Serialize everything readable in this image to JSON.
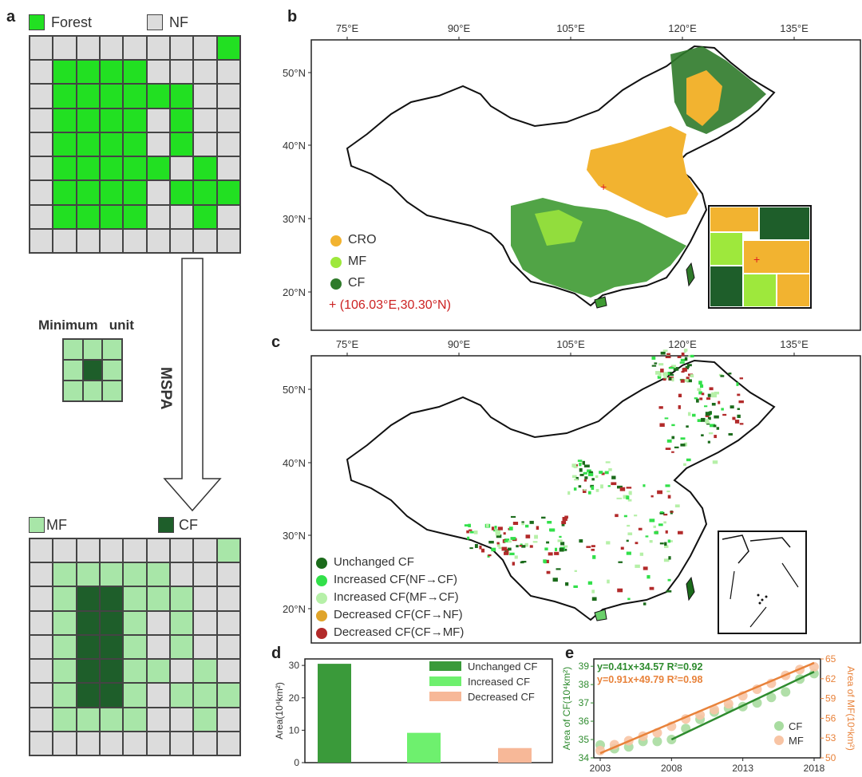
{
  "panels": {
    "a": "a",
    "b": "b",
    "c": "c",
    "d": "d",
    "e": "e"
  },
  "panel_a": {
    "legend_top": {
      "forest": "Forest",
      "nf": "NF"
    },
    "minimum_unit_label": "Minimum   unit",
    "arrow_label": "MSPA",
    "legend_bottom": {
      "mf": "MF",
      "cf": "CF"
    },
    "top_grid_rows": [
      "NNNNNNNNF",
      "NFFFFNNNN",
      "NFFFFFFNN",
      "NFFFFNFNN",
      "NFFFFNFNN",
      "NFFFFFNFN",
      "NFFFFNFFF",
      "NFFFFNNFN",
      "NNNNNNNNN"
    ],
    "bottom_grid_rows": [
      "NNNNNNNNM",
      "NMMMMMNNN",
      "NMCCMMMNN",
      "NMCCMNMNN",
      "NMCCMNMNN",
      "NMCCMMNMN",
      "NMCCMNMMM",
      "NMMMMNNMN",
      "NNNNNNNNN"
    ]
  },
  "map_axes": {
    "lon_ticks": [
      "75°E",
      "90°E",
      "105°E",
      "120°E",
      "135°E"
    ],
    "lat_ticks": [
      "50°N",
      "40°N",
      "30°N",
      "20°N"
    ]
  },
  "panel_b": {
    "legend": [
      {
        "label": "CRO",
        "color": "#f2b330"
      },
      {
        "label": "MF",
        "color": "#9ee83c"
      },
      {
        "label": "CF",
        "color": "#2f7a2a"
      }
    ],
    "point_label": "+ (106.03°E,30.30°N)"
  },
  "panel_c": {
    "legend": [
      {
        "label": "Unchanged CF",
        "color": "#1b6b1b"
      },
      {
        "label": "Increased CF(NF→CF)",
        "color": "#32e04a"
      },
      {
        "label": "Increased CF(MF→CF)",
        "color": "#b6f0a8"
      },
      {
        "label": "Decreased CF(CF→NF)",
        "color": "#e0a42a"
      },
      {
        "label": "Decreased CF(CF→MF)",
        "color": "#b22a2a"
      }
    ]
  },
  "colors": {
    "cro": "#f2b330",
    "mf": "#9ee83c",
    "cf": "#2f7a2a",
    "forest": "#22e022",
    "nf": "#dcdcdc",
    "lightmf": "#a8e6a8",
    "darkcf": "#1e5e2a",
    "trend_cf": "#2e8b2e",
    "trend_mf": "#e8823a"
  },
  "chart_data": [
    {
      "type": "bar",
      "categories": [
        "Unchanged CF",
        "Increased CF",
        "Decreased CF"
      ],
      "values": [
        30.5,
        9.2,
        4.5
      ],
      "colors": [
        "#3a9a3a",
        "#6ef06e",
        "#f7b898"
      ],
      "ylabel": "Area(10⁴km²)",
      "ylim": [
        0,
        32
      ],
      "yticks": [
        "0",
        "10",
        "20",
        "30"
      ],
      "legend": [
        "Unchanged CF",
        "Increased CF",
        "Decreased CF"
      ]
    },
    {
      "type": "scatter",
      "x_ticks": [
        "2003",
        "2008",
        "2013",
        "2018"
      ],
      "xlim": [
        2003,
        2018
      ],
      "left_axis": {
        "label": "Area of CF(10⁴km²)",
        "ticks": [
          "34",
          "35",
          "36",
          "37",
          "38",
          "39"
        ],
        "ylim": [
          34,
          39.4
        ]
      },
      "right_axis": {
        "label": "Area of MF(10⁴km²)",
        "ticks": [
          "50",
          "53",
          "56",
          "59",
          "62",
          "65"
        ],
        "ylim": [
          50,
          65
        ]
      },
      "equations": {
        "cf": "y=0.41x+34.57 R²=0.92",
        "mf": "y=0.91x+49.79 R²=0.98"
      },
      "legend": [
        "CF",
        "MF"
      ],
      "series": [
        {
          "name": "CF",
          "axis": "left",
          "x": [
            2003,
            2004,
            2005,
            2006,
            2007,
            2008,
            2009,
            2010,
            2011,
            2012,
            2013,
            2014,
            2015,
            2016,
            2017,
            2018
          ],
          "y": [
            34.7,
            34.5,
            34.6,
            34.9,
            34.9,
            35.0,
            35.6,
            36.1,
            36.5,
            36.7,
            36.8,
            37.0,
            37.3,
            37.6,
            38.3,
            38.6
          ]
        },
        {
          "name": "MF",
          "axis": "right",
          "x": [
            2003,
            2004,
            2005,
            2006,
            2007,
            2008,
            2009,
            2010,
            2011,
            2012,
            2013,
            2014,
            2015,
            2016,
            2017,
            2018
          ],
          "y": [
            51.1,
            52.0,
            52.6,
            53.3,
            53.8,
            54.8,
            55.9,
            56.5,
            57.3,
            58.2,
            59.4,
            60.4,
            61.3,
            62.5,
            63.4,
            63.8
          ]
        }
      ]
    }
  ]
}
